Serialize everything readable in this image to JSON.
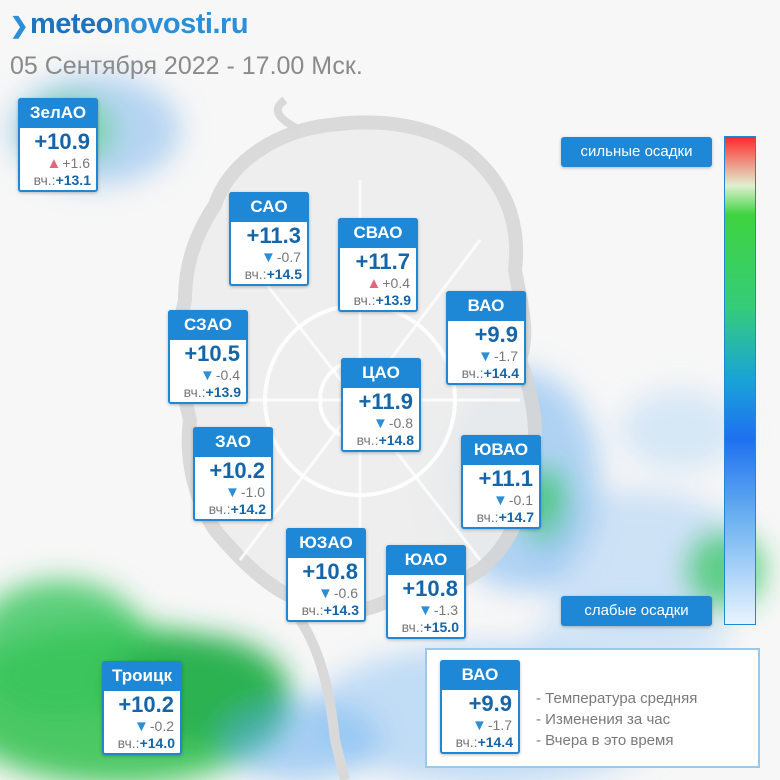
{
  "logo": {
    "prefix": "meteo",
    "suffix": "novosti.ru"
  },
  "subtitle": "05 Сентября 2022 - 17.00 Мск.",
  "yesterday_label": "вч.:",
  "districts": [
    {
      "name": "ЗелАО",
      "temp": "+10.9",
      "change": "+1.6",
      "direction": "up",
      "yesterday": "+13.1"
    },
    {
      "name": "САО",
      "temp": "+11.3",
      "change": "-0.7",
      "direction": "down",
      "yesterday": "+14.5"
    },
    {
      "name": "СВАО",
      "temp": "+11.7",
      "change": "+0.4",
      "direction": "up",
      "yesterday": "+13.9"
    },
    {
      "name": "ВАО",
      "temp": "+9.9",
      "change": "-1.7",
      "direction": "down",
      "yesterday": "+14.4"
    },
    {
      "name": "СЗАО",
      "temp": "+10.5",
      "change": "-0.4",
      "direction": "down",
      "yesterday": "+13.9"
    },
    {
      "name": "ЦАО",
      "temp": "+11.9",
      "change": "-0.8",
      "direction": "down",
      "yesterday": "+14.8"
    },
    {
      "name": "ЗАО",
      "temp": "+10.2",
      "change": "-1.0",
      "direction": "down",
      "yesterday": "+14.2"
    },
    {
      "name": "ЮВАО",
      "temp": "+11.1",
      "change": "-0.1",
      "direction": "down",
      "yesterday": "+14.7"
    },
    {
      "name": "ЮЗАО",
      "temp": "+10.8",
      "change": "-0.6",
      "direction": "down",
      "yesterday": "+14.3"
    },
    {
      "name": "ЮАО",
      "temp": "+10.8",
      "change": "-1.3",
      "direction": "down",
      "yesterday": "+15.0"
    },
    {
      "name": "Троицк",
      "temp": "+10.2",
      "change": "-0.2",
      "direction": "down",
      "yesterday": "+14.0"
    }
  ],
  "legend": {
    "strong": "сильные осадки",
    "weak": "слабые осадки",
    "example": {
      "name": "ВАО",
      "temp": "+9.9",
      "change": "-1.7",
      "direction": "down",
      "yesterday": "+14.4"
    },
    "notes": [
      "- Температура средняя",
      "- Изменения за час",
      "- Вчера в это время"
    ]
  },
  "colors": {
    "accent": "#1e88d6",
    "temp_text": "#1565a8",
    "up": "#e8627a",
    "down": "#2a8fd6"
  },
  "icons": {
    "up": "triangle-up-icon",
    "down": "triangle-down-icon"
  }
}
